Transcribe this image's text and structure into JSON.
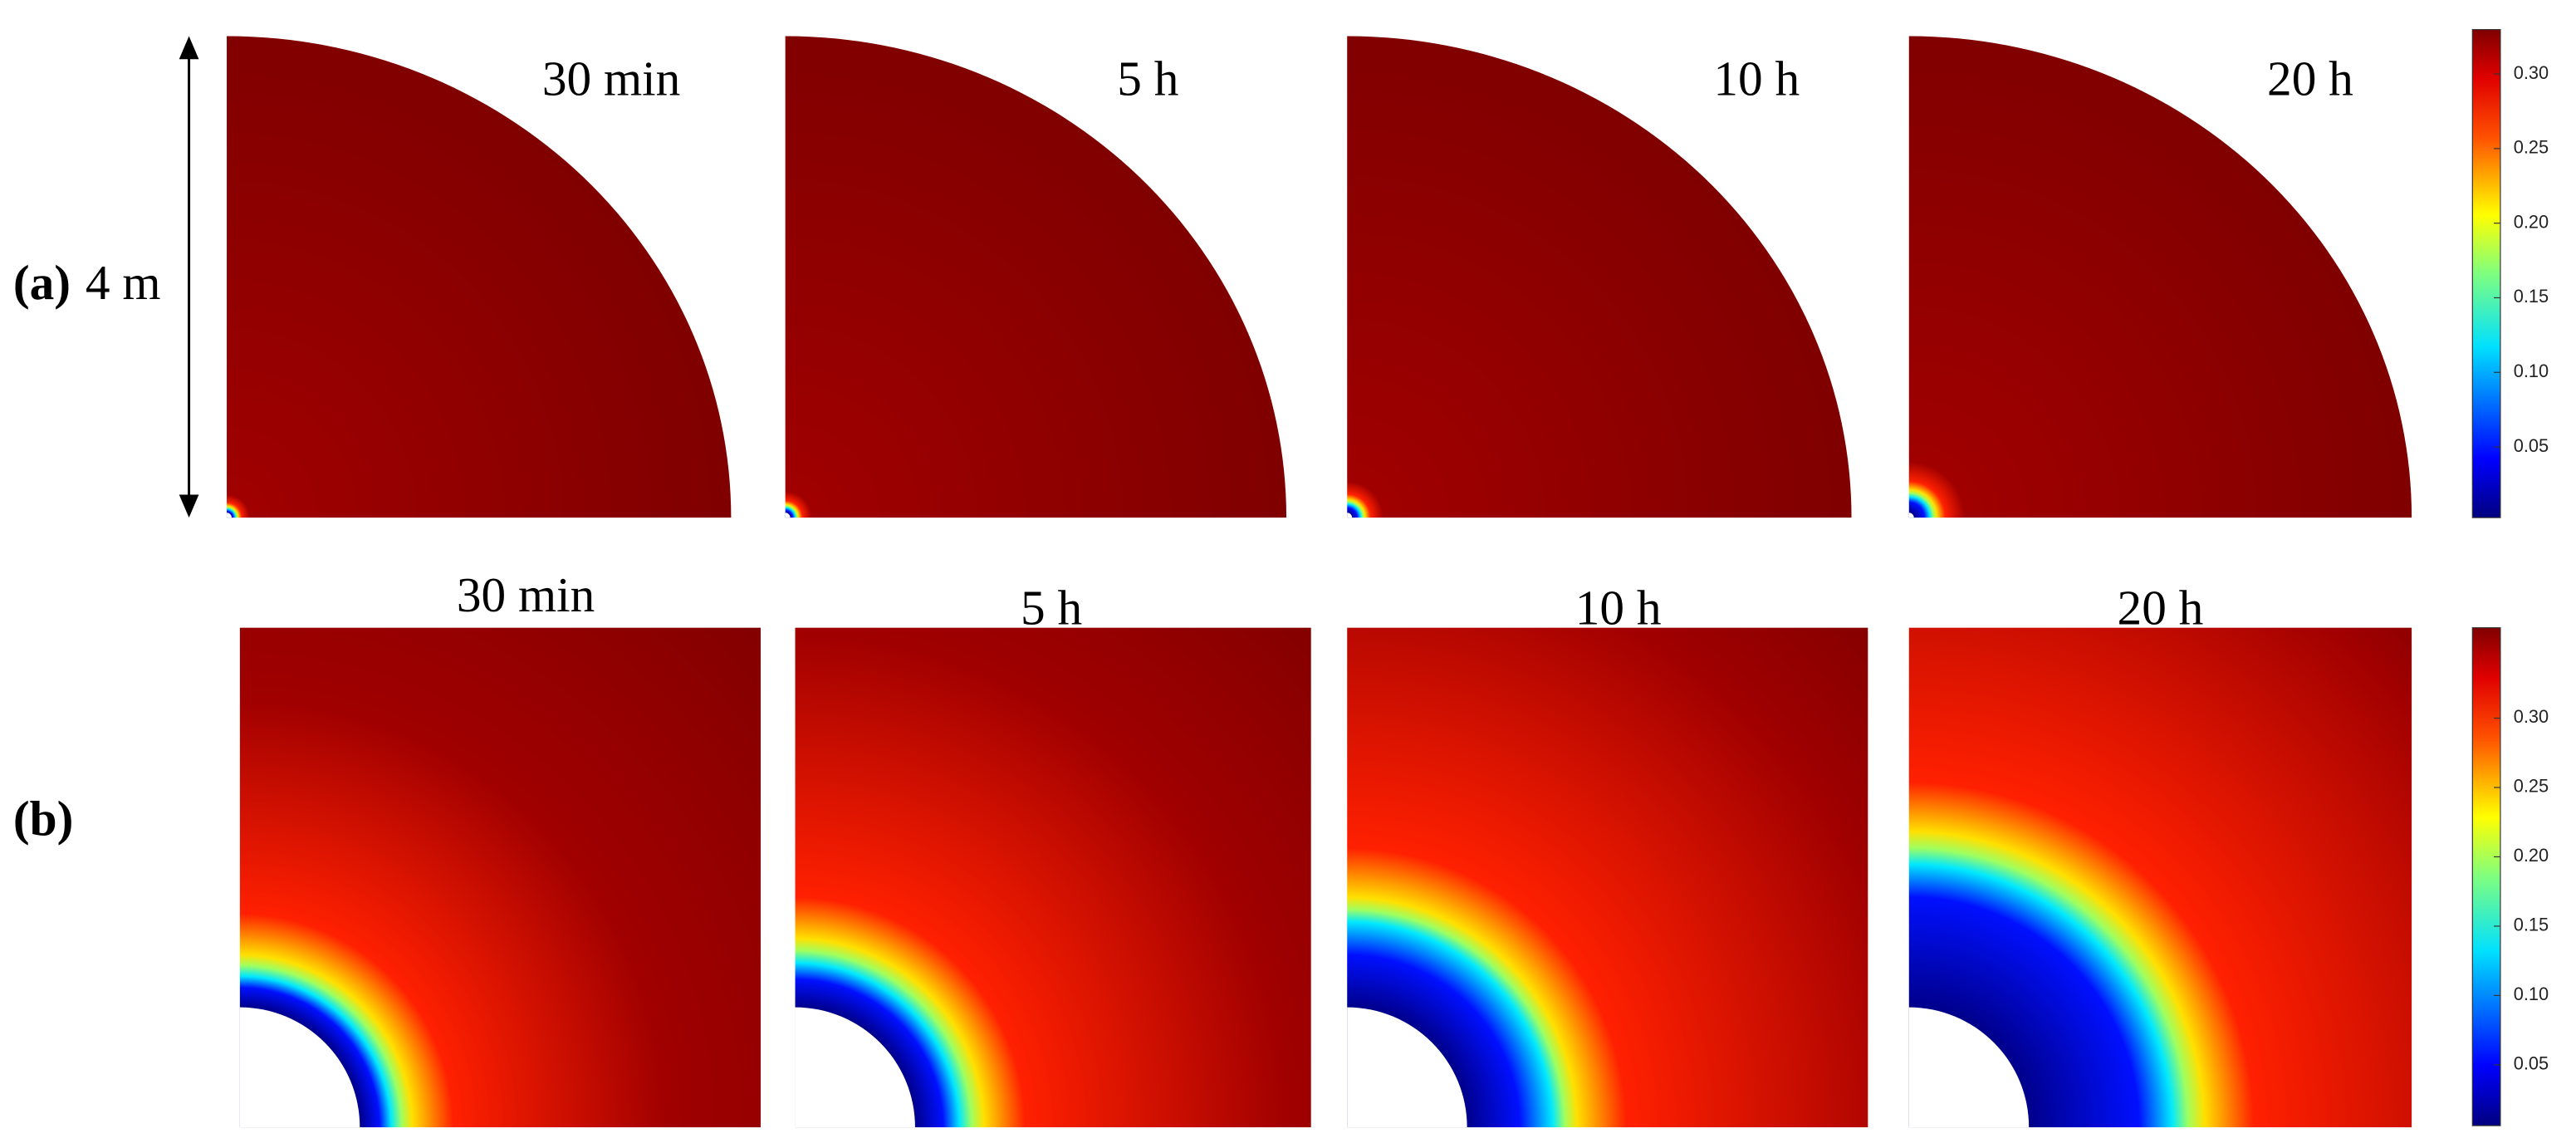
{
  "row_labels": {
    "a": "(a)",
    "b": "(b)"
  },
  "scale_label": "4 m",
  "rows": [
    {
      "times": [
        "30 min",
        "5 h",
        "10 h",
        "20 h"
      ]
    },
    {
      "times": [
        "30 min",
        "5 h",
        "10 h",
        "20 h"
      ]
    }
  ],
  "colorbars": [
    {
      "ticks": [
        "0.05",
        "0.10",
        "0.15",
        "0.20",
        "0.25",
        "0.30"
      ]
    },
    {
      "ticks": [
        "0.05",
        "0.10",
        "0.15",
        "0.20",
        "0.25",
        "0.30"
      ]
    }
  ]
}
